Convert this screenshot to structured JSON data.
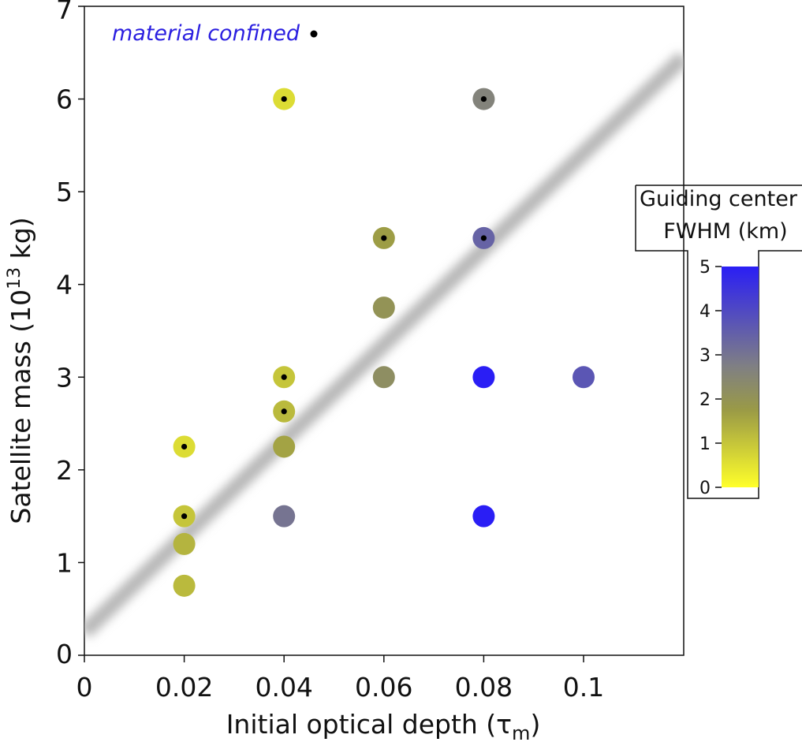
{
  "chart_data": {
    "type": "scatter",
    "title": "",
    "xlabel": "Initial optical depth (τ",
    "xlabel_sub": "m",
    "xlabel_close": ")",
    "ylabel": "Satellite mass (10",
    "ylabel_sup": "13",
    "ylabel_unit": " kg)",
    "xlim": [
      0,
      0.12
    ],
    "ylim": [
      0,
      7
    ],
    "x_ticks": [
      0,
      0.02,
      0.04,
      0.06,
      0.08,
      0.1
    ],
    "x_tick_labels": [
      "0",
      "0.02",
      "0.04",
      "0.06",
      "0.08",
      "0.1"
    ],
    "y_ticks": [
      0,
      1,
      2,
      3,
      4,
      5,
      6,
      7
    ],
    "y_tick_labels": [
      "0",
      "1",
      "2",
      "3",
      "4",
      "5",
      "6",
      "7"
    ],
    "legend_label": "material confined",
    "trend_line": {
      "x": [
        0,
        0.12
      ],
      "y": [
        0.25,
        6.45
      ]
    },
    "colorbar": {
      "title_line1": "Guiding center",
      "title_line2": "FWHM (km)",
      "range": [
        0,
        5
      ],
      "ticks": [
        0,
        1,
        2,
        3,
        4,
        5
      ],
      "tick_labels": [
        "0",
        "1",
        "2",
        "3",
        "4",
        "5"
      ],
      "colors": [
        "#ffff2a",
        "#9a9a46",
        "#7f7f84",
        "#2a1ef5"
      ]
    },
    "points": [
      {
        "x": 0.02,
        "y": 0.75,
        "fwhm": 1.2,
        "confined": false
      },
      {
        "x": 0.02,
        "y": 1.2,
        "fwhm": 1.3,
        "confined": false
      },
      {
        "x": 0.02,
        "y": 1.5,
        "fwhm": 1.0,
        "confined": true
      },
      {
        "x": 0.02,
        "y": 2.25,
        "fwhm": 0.6,
        "confined": true
      },
      {
        "x": 0.04,
        "y": 1.5,
        "fwhm": 3.0,
        "confined": false
      },
      {
        "x": 0.04,
        "y": 2.25,
        "fwhm": 1.6,
        "confined": false
      },
      {
        "x": 0.04,
        "y": 2.63,
        "fwhm": 1.2,
        "confined": true
      },
      {
        "x": 0.04,
        "y": 3.0,
        "fwhm": 1.0,
        "confined": true
      },
      {
        "x": 0.04,
        "y": 6.0,
        "fwhm": 0.6,
        "confined": true
      },
      {
        "x": 0.06,
        "y": 3.0,
        "fwhm": 2.2,
        "confined": false
      },
      {
        "x": 0.06,
        "y": 3.75,
        "fwhm": 2.0,
        "confined": false
      },
      {
        "x": 0.06,
        "y": 4.5,
        "fwhm": 1.7,
        "confined": true
      },
      {
        "x": 0.08,
        "y": 1.5,
        "fwhm": 5.0,
        "confined": false
      },
      {
        "x": 0.08,
        "y": 3.0,
        "fwhm": 5.0,
        "confined": false
      },
      {
        "x": 0.08,
        "y": 4.5,
        "fwhm": 3.4,
        "confined": true
      },
      {
        "x": 0.08,
        "y": 6.0,
        "fwhm": 2.6,
        "confined": true
      },
      {
        "x": 0.1,
        "y": 3.0,
        "fwhm": 3.7,
        "confined": false
      }
    ]
  }
}
